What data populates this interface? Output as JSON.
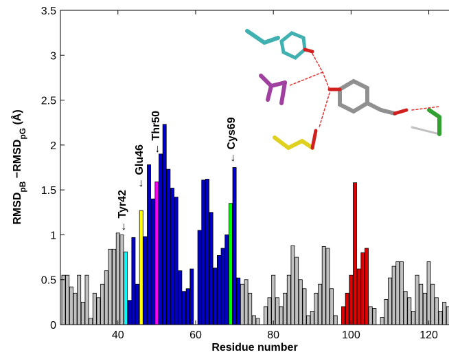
{
  "chart_data": {
    "type": "bar",
    "xlabel": "Residue number",
    "ylabel": [
      "RMSD",
      "pB",
      " −RMSD",
      "pG",
      " (Å)"
    ],
    "x": [
      26,
      27,
      28,
      29,
      30,
      31,
      32,
      33,
      34,
      35,
      36,
      37,
      38,
      39,
      40,
      41,
      42,
      43,
      44,
      45,
      46,
      47,
      48,
      49,
      50,
      51,
      52,
      53,
      54,
      55,
      56,
      57,
      58,
      59,
      60,
      61,
      62,
      63,
      64,
      65,
      66,
      67,
      68,
      69,
      70,
      71,
      72,
      73,
      74,
      75,
      76,
      77,
      78,
      79,
      80,
      81,
      82,
      83,
      84,
      85,
      86,
      87,
      88,
      89,
      90,
      91,
      92,
      93,
      94,
      95,
      96,
      97,
      98,
      99,
      100,
      101,
      102,
      103,
      104,
      105,
      106,
      107,
      108,
      109,
      110,
      111,
      112,
      113,
      114,
      115,
      116,
      117,
      118,
      119,
      120,
      121,
      122,
      123,
      124,
      125
    ],
    "values": [
      0.55,
      0.55,
      0.42,
      0.35,
      0.55,
      0.25,
      0.55,
      0.07,
      0.35,
      0.3,
      0.45,
      0.6,
      0.84,
      0.84,
      1.02,
      1.0,
      0.81,
      0.27,
      0.97,
      0.45,
      1.27,
      0.98,
      1.78,
      1.4,
      1.59,
      1.9,
      2.23,
      1.73,
      1.52,
      1.42,
      0.6,
      0.37,
      0.4,
      0.62,
      0,
      1.05,
      1.61,
      1.62,
      1.25,
      0.63,
      0.77,
      0.85,
      1.0,
      1.35,
      1.75,
      0.52,
      0.45,
      0.5,
      0.35,
      0.1,
      0.07,
      0,
      0.2,
      0.3,
      0.55,
      0.3,
      0.2,
      0.35,
      0.55,
      0.88,
      0.75,
      0.5,
      0.4,
      0.1,
      0.15,
      0.35,
      0.45,
      0.87,
      0.85,
      0.4,
      0.1,
      0,
      0.2,
      0.35,
      0.55,
      1.58,
      0.62,
      0.8,
      0.85,
      0.2,
      0.18,
      0,
      0.08,
      0.28,
      0.52,
      0.65,
      0.7,
      0.7,
      0.37,
      0.3,
      0.15,
      0.55,
      0.45,
      0.35,
      0.7,
      0.45,
      0.3,
      0.15,
      0.25,
      0.2
    ],
    "colors": [
      "#c0c0c0",
      "#c0c0c0",
      "#c0c0c0",
      "#c0c0c0",
      "#c0c0c0",
      "#c0c0c0",
      "#c0c0c0",
      "#c0c0c0",
      "#c0c0c0",
      "#c0c0c0",
      "#c0c0c0",
      "#c0c0c0",
      "#c0c0c0",
      "#c0c0c0",
      "#c0c0c0",
      "#c0c0c0",
      "#00ffff",
      "#0000c8",
      "#0000c8",
      "#0000c8",
      "#ffff00",
      "#0000c8",
      "#0000c8",
      "#0000c8",
      "#ff00ff",
      "#0000c8",
      "#0000c8",
      "#0000c8",
      "#0000c8",
      "#0000c8",
      "#0000c8",
      "#0000c8",
      "#0000c8",
      "#0000c8",
      "#0000c8",
      "#0000c8",
      "#0000c8",
      "#0000c8",
      "#0000c8",
      "#0000c8",
      "#0000c8",
      "#0000c8",
      "#0000c8",
      "#00ff00",
      "#0000c8",
      "#0000c8",
      "#c0c0c0",
      "#c0c0c0",
      "#c0c0c0",
      "#c0c0c0",
      "#c0c0c0",
      "#c0c0c0",
      "#c0c0c0",
      "#c0c0c0",
      "#c0c0c0",
      "#c0c0c0",
      "#c0c0c0",
      "#c0c0c0",
      "#c0c0c0",
      "#c0c0c0",
      "#c0c0c0",
      "#c0c0c0",
      "#c0c0c0",
      "#c0c0c0",
      "#c0c0c0",
      "#c0c0c0",
      "#c0c0c0",
      "#c0c0c0",
      "#c0c0c0",
      "#c0c0c0",
      "#c0c0c0",
      "#c0c0c0",
      "#e00000",
      "#e00000",
      "#e00000",
      "#e00000",
      "#e00000",
      "#e00000",
      "#e00000",
      "#c0c0c0",
      "#c0c0c0",
      "#c0c0c0",
      "#c0c0c0",
      "#c0c0c0",
      "#c0c0c0",
      "#c0c0c0",
      "#c0c0c0",
      "#c0c0c0",
      "#c0c0c0",
      "#c0c0c0",
      "#c0c0c0",
      "#c0c0c0",
      "#c0c0c0",
      "#c0c0c0",
      "#c0c0c0",
      "#c0c0c0",
      "#c0c0c0",
      "#c0c0c0",
      "#c0c0c0",
      "#c0c0c0"
    ],
    "xlim": [
      25.2,
      125.2
    ],
    "ylim": [
      0,
      3.5
    ],
    "xticks": [
      40,
      60,
      80,
      100,
      120
    ],
    "yticks": [
      0,
      0.5,
      1,
      1.5,
      2,
      2.5,
      3,
      3.5
    ],
    "annotations": [
      {
        "text": "← Tyr42",
        "color": "#00ffff"
      },
      {
        "text": "← Glu46",
        "color": "#ffff00"
      },
      {
        "text": "← Thr50",
        "color": "#ff00ff"
      },
      {
        "text": "← Cys69",
        "color": "#00ff00"
      }
    ]
  }
}
